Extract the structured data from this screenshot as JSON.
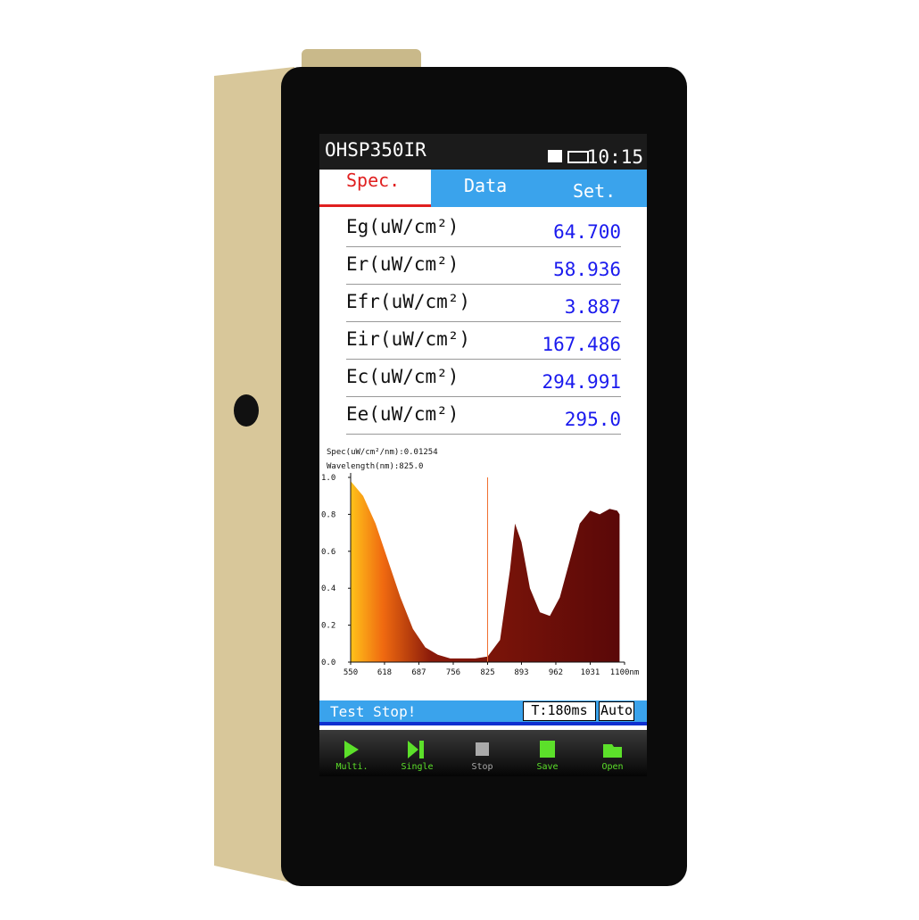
{
  "header": {
    "title": "OHSP350IR",
    "time": "10:15"
  },
  "tabs": [
    "Spec.",
    "Data",
    "Set."
  ],
  "measurements": [
    {
      "label": "Eg(uW/cm²)",
      "value": "64.700"
    },
    {
      "label": "Er(uW/cm²)",
      "value": "58.936"
    },
    {
      "label": "Efr(uW/cm²)",
      "value": "3.887"
    },
    {
      "label": "Eir(uW/cm²)",
      "value": "167.486"
    },
    {
      "label": "Ec(uW/cm²)",
      "value": "294.991"
    },
    {
      "label": "Ee(uW/cm²)",
      "value": "295.0"
    }
  ],
  "chart_data": {
    "type": "area",
    "spec_label": "Spec(uW/cm²/nm):0.01254",
    "wavelength_label": "Wavelength(nm):825.0",
    "cursor_x": 825,
    "x": [
      550,
      575,
      600,
      625,
      650,
      675,
      700,
      725,
      750,
      775,
      800,
      825,
      850,
      870,
      880,
      893,
      910,
      930,
      950,
      970,
      990,
      1010,
      1031,
      1050,
      1070,
      1085,
      1090
    ],
    "values": [
      0.98,
      0.9,
      0.75,
      0.55,
      0.35,
      0.18,
      0.08,
      0.04,
      0.02,
      0.02,
      0.02,
      0.03,
      0.12,
      0.5,
      0.75,
      0.65,
      0.4,
      0.27,
      0.25,
      0.35,
      0.55,
      0.75,
      0.82,
      0.8,
      0.83,
      0.82,
      0.8
    ],
    "xlim": [
      550,
      1100
    ],
    "ylim": [
      0,
      1
    ],
    "xticks": [
      550,
      618,
      687,
      756,
      825,
      893,
      962,
      1031,
      {
        "value": 1100,
        "label": "1100nm"
      }
    ],
    "yticks": [
      {
        "value": 1,
        "label": "1.0"
      },
      0.8,
      0.6,
      0.4,
      0.2,
      {
        "value": 0,
        "label": "0.0"
      }
    ]
  },
  "status": {
    "message": "Test Stop!",
    "time": "T:180ms",
    "mode": "Auto"
  },
  "buttons": [
    "Multi.",
    "Single",
    "Stop",
    "Save",
    "Open"
  ]
}
